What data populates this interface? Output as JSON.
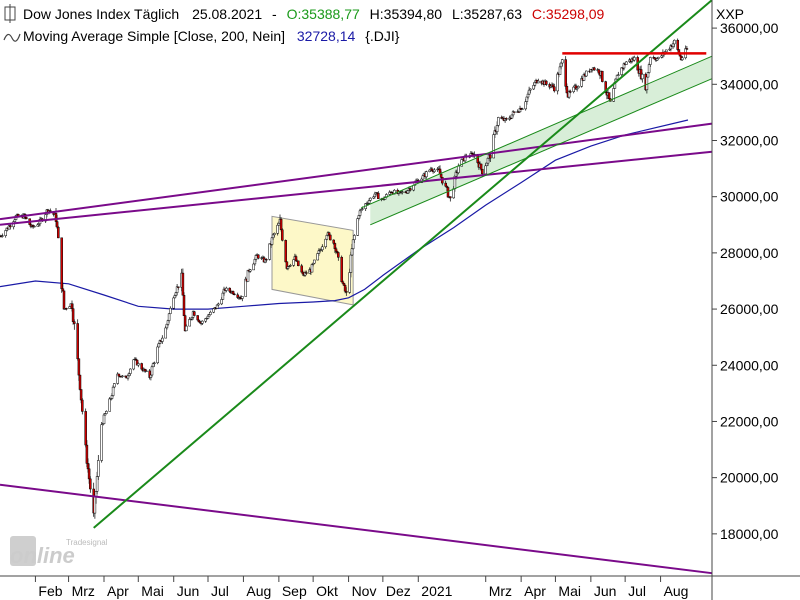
{
  "legend": {
    "line1": {
      "instrument": "Dow Jones Index Täglich",
      "date": "25.08.2021",
      "sep": "-",
      "open": "O:35388,77",
      "high": "H:35394,80",
      "low": "L:35287,63",
      "close": "C:35298,09"
    },
    "line2": {
      "indicator": "Moving Average Simple [Close, 200, Nein]",
      "value": "32728,14",
      "symbol": "{.DJI}"
    }
  },
  "axis_unit": "XXP",
  "watermark": {
    "small": "Tradesignal",
    "big": "online"
  },
  "colors": {
    "up": "#ffffff",
    "down": "#cc0000",
    "candle_outline": "#000000",
    "sma": "#1a1aa6",
    "trend_green": "#1a8a1a",
    "channel_fill": "#d8eed8",
    "purple": "#7a0a8a",
    "resistance": "#e00000",
    "rect_fill": "#fdf8c8",
    "rect_stroke": "#999999",
    "open_text": "#1a9a1a",
    "close_text": "#cc0000",
    "sma_text": "#1a1aa6"
  },
  "chart_data": {
    "type": "candlestick",
    "title": "Dow Jones Index Täglich",
    "y_ticks": [
      {
        "value": 18000,
        "label": "18000,00"
      },
      {
        "value": 20000,
        "label": "20000,00"
      },
      {
        "value": 22000,
        "label": "22000,00"
      },
      {
        "value": 24000,
        "label": "24000,00"
      },
      {
        "value": 26000,
        "label": "26000,00"
      },
      {
        "value": 28000,
        "label": "28000,00"
      },
      {
        "value": 30000,
        "label": "30000,00"
      },
      {
        "value": 32000,
        "label": "32000,00"
      },
      {
        "value": 34000,
        "label": "34000,00"
      },
      {
        "value": 36000,
        "label": "36000,00"
      }
    ],
    "x_ticks": [
      {
        "date": "2020-02-01",
        "label": "Feb"
      },
      {
        "date": "2020-03-01",
        "label": "Mrz"
      },
      {
        "date": "2020-04-01",
        "label": "Apr"
      },
      {
        "date": "2020-05-01",
        "label": "Mai"
      },
      {
        "date": "2020-06-01",
        "label": "Jun"
      },
      {
        "date": "2020-07-01",
        "label": "Jul"
      },
      {
        "date": "2020-08-01",
        "label": "Aug"
      },
      {
        "date": "2020-09-01",
        "label": "Sep"
      },
      {
        "date": "2020-10-01",
        "label": "Okt"
      },
      {
        "date": "2020-11-01",
        "label": "Nov"
      },
      {
        "date": "2020-12-01",
        "label": "Dez"
      },
      {
        "date": "2021-01-01",
        "label": "2021"
      },
      {
        "date": "2021-03-01",
        "label": "Mrz"
      },
      {
        "date": "2021-04-01",
        "label": "Apr"
      },
      {
        "date": "2021-05-01",
        "label": "Mai"
      },
      {
        "date": "2021-06-01",
        "label": "Jun"
      },
      {
        "date": "2021-07-01",
        "label": "Jul"
      },
      {
        "date": "2021-08-01",
        "label": "Aug"
      }
    ],
    "x_range": [
      "2020-01-01",
      "2021-09-15"
    ],
    "y_range": [
      16500,
      37000
    ],
    "closes": [
      [
        "2020-01-01",
        28600
      ],
      [
        "2020-01-08",
        28900
      ],
      [
        "2020-01-15",
        29300
      ],
      [
        "2020-01-22",
        29300
      ],
      [
        "2020-01-29",
        28900
      ],
      [
        "2020-02-05",
        29100
      ],
      [
        "2020-02-12",
        29550
      ],
      [
        "2020-02-19",
        29300
      ],
      [
        "2020-02-26",
        26000
      ],
      [
        "2020-03-04",
        26200
      ],
      [
        "2020-03-11",
        23300
      ],
      [
        "2020-03-16",
        21000
      ],
      [
        "2020-03-23",
        18600
      ],
      [
        "2020-03-30",
        21900
      ],
      [
        "2020-04-06",
        22700
      ],
      [
        "2020-04-13",
        23700
      ],
      [
        "2020-04-20",
        23500
      ],
      [
        "2020-04-27",
        24200
      ],
      [
        "2020-05-04",
        23900
      ],
      [
        "2020-05-11",
        23600
      ],
      [
        "2020-05-18",
        24600
      ],
      [
        "2020-05-25",
        25300
      ],
      [
        "2020-06-01",
        26500
      ],
      [
        "2020-06-08",
        27100
      ],
      [
        "2020-06-11",
        25200
      ],
      [
        "2020-06-18",
        25900
      ],
      [
        "2020-06-25",
        25500
      ],
      [
        "2020-07-02",
        25800
      ],
      [
        "2020-07-09",
        26100
      ],
      [
        "2020-07-16",
        26700
      ],
      [
        "2020-07-23",
        26600
      ],
      [
        "2020-07-30",
        26400
      ],
      [
        "2020-08-06",
        27400
      ],
      [
        "2020-08-13",
        27900
      ],
      [
        "2020-08-20",
        27700
      ],
      [
        "2020-08-27",
        28600
      ],
      [
        "2020-09-02",
        29100
      ],
      [
        "2020-09-08",
        27500
      ],
      [
        "2020-09-15",
        27800
      ],
      [
        "2020-09-22",
        27200
      ],
      [
        "2020-09-29",
        27400
      ],
      [
        "2020-10-06",
        28000
      ],
      [
        "2020-10-13",
        28700
      ],
      [
        "2020-10-20",
        28300
      ],
      [
        "2020-10-27",
        26900
      ],
      [
        "2020-10-30",
        26500
      ],
      [
        "2020-11-05",
        28400
      ],
      [
        "2020-11-10",
        29400
      ],
      [
        "2020-11-17",
        29800
      ],
      [
        "2020-11-24",
        30100
      ],
      [
        "2020-12-01",
        29900
      ],
      [
        "2020-12-08",
        30200
      ],
      [
        "2020-12-15",
        30100
      ],
      [
        "2020-12-22",
        30200
      ],
      [
        "2020-12-29",
        30500
      ],
      [
        "2021-01-05",
        30700
      ],
      [
        "2021-01-12",
        31000
      ],
      [
        "2021-01-19",
        30900
      ],
      [
        "2021-01-29",
        29900
      ],
      [
        "2021-02-05",
        31100
      ],
      [
        "2021-02-12",
        31450
      ],
      [
        "2021-02-19",
        31500
      ],
      [
        "2021-02-26",
        30900
      ],
      [
        "2021-03-05",
        31500
      ],
      [
        "2021-03-12",
        32800
      ],
      [
        "2021-03-19",
        32700
      ],
      [
        "2021-03-26",
        33000
      ],
      [
        "2021-04-02",
        33200
      ],
      [
        "2021-04-09",
        33800
      ],
      [
        "2021-04-16",
        34200
      ],
      [
        "2021-04-23",
        34000
      ],
      [
        "2021-04-30",
        33900
      ],
      [
        "2021-05-07",
        34800
      ],
      [
        "2021-05-12",
        33600
      ],
      [
        "2021-05-19",
        33900
      ],
      [
        "2021-05-26",
        34300
      ],
      [
        "2021-06-02",
        34600
      ],
      [
        "2021-06-09",
        34450
      ],
      [
        "2021-06-18",
        33300
      ],
      [
        "2021-06-25",
        34400
      ],
      [
        "2021-07-02",
        34800
      ],
      [
        "2021-07-09",
        34900
      ],
      [
        "2021-07-19",
        33950
      ],
      [
        "2021-07-23",
        35000
      ],
      [
        "2021-07-30",
        34900
      ],
      [
        "2021-08-06",
        35200
      ],
      [
        "2021-08-13",
        35500
      ],
      [
        "2021-08-19",
        34900
      ],
      [
        "2021-08-25",
        35298
      ]
    ],
    "sma_200": [
      [
        "2020-01-01",
        26800
      ],
      [
        "2020-02-01",
        27000
      ],
      [
        "2020-03-01",
        26900
      ],
      [
        "2020-04-01",
        26500
      ],
      [
        "2020-05-01",
        26100
      ],
      [
        "2020-06-01",
        26000
      ],
      [
        "2020-07-01",
        26000
      ],
      [
        "2020-08-01",
        26100
      ],
      [
        "2020-09-01",
        26200
      ],
      [
        "2020-10-01",
        26250
      ],
      [
        "2020-10-20",
        26300
      ],
      [
        "2020-11-01",
        26400
      ],
      [
        "2020-11-15",
        26700
      ],
      [
        "2020-12-01",
        27200
      ],
      [
        "2021-01-01",
        28100
      ],
      [
        "2021-02-01",
        28900
      ],
      [
        "2021-03-01",
        29700
      ],
      [
        "2021-04-01",
        30500
      ],
      [
        "2021-05-01",
        31300
      ],
      [
        "2021-06-01",
        31800
      ],
      [
        "2021-07-01",
        32200
      ],
      [
        "2021-08-25",
        32728
      ]
    ],
    "drawings": {
      "main_uptrend": [
        [
          "2020-03-23",
          18213
        ],
        [
          "2021-09-15",
          37000
        ]
      ],
      "channel_upper": [
        [
          "2020-11-12",
          29600
        ],
        [
          "2021-09-15",
          35000
        ]
      ],
      "channel_lower": [
        [
          "2020-11-20",
          29000
        ],
        [
          "2021-09-15",
          34200
        ]
      ],
      "purple_upper": [
        [
          "2020-01-01",
          29200
        ],
        [
          "2021-09-15",
          32600
        ]
      ],
      "purple_lower": [
        [
          "2020-01-01",
          29000
        ],
        [
          "2021-09-15",
          31600
        ]
      ],
      "purple_bottom": [
        [
          "2020-01-01",
          19750
        ],
        [
          "2021-09-15",
          16600
        ]
      ],
      "resistance": [
        [
          "2021-05-07",
          35100
        ],
        [
          "2021-09-10",
          35100
        ]
      ],
      "consolidation_box": [
        [
          "2020-08-26",
          29300
        ],
        [
          "2020-11-05",
          28800
        ],
        [
          "2020-11-05",
          26150
        ],
        [
          "2020-08-26",
          26700
        ]
      ]
    }
  }
}
